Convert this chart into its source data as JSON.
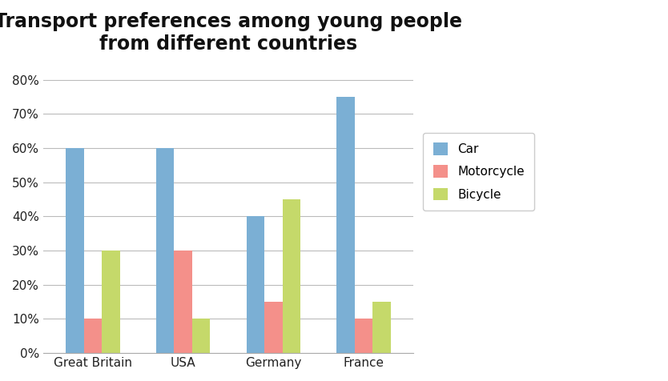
{
  "title": "Transport preferences among young people\nfrom different countries",
  "categories": [
    "Great Britain",
    "USA",
    "Germany",
    "France"
  ],
  "series": {
    "Car": [
      0.6,
      0.6,
      0.4,
      0.75
    ],
    "Motorcycle": [
      0.1,
      0.3,
      0.15,
      0.1
    ],
    "Bicycle": [
      0.3,
      0.1,
      0.45,
      0.15
    ]
  },
  "colors": {
    "Car": "#7BAFD4",
    "Motorcycle": "#F4908A",
    "Bicycle": "#C5D96A"
  },
  "ylim": [
    0,
    0.85
  ],
  "yticks": [
    0.0,
    0.1,
    0.2,
    0.3,
    0.4,
    0.5,
    0.6,
    0.7,
    0.8
  ],
  "ytick_labels": [
    "0%",
    "10%",
    "20%",
    "30%",
    "40%",
    "50%",
    "60%",
    "70%",
    "80%"
  ],
  "title_fontsize": 17,
  "title_fontweight": "bold",
  "bar_width": 0.2,
  "legend_fontsize": 11,
  "background_color": "#ffffff",
  "grid_color": "#bbbbbb"
}
